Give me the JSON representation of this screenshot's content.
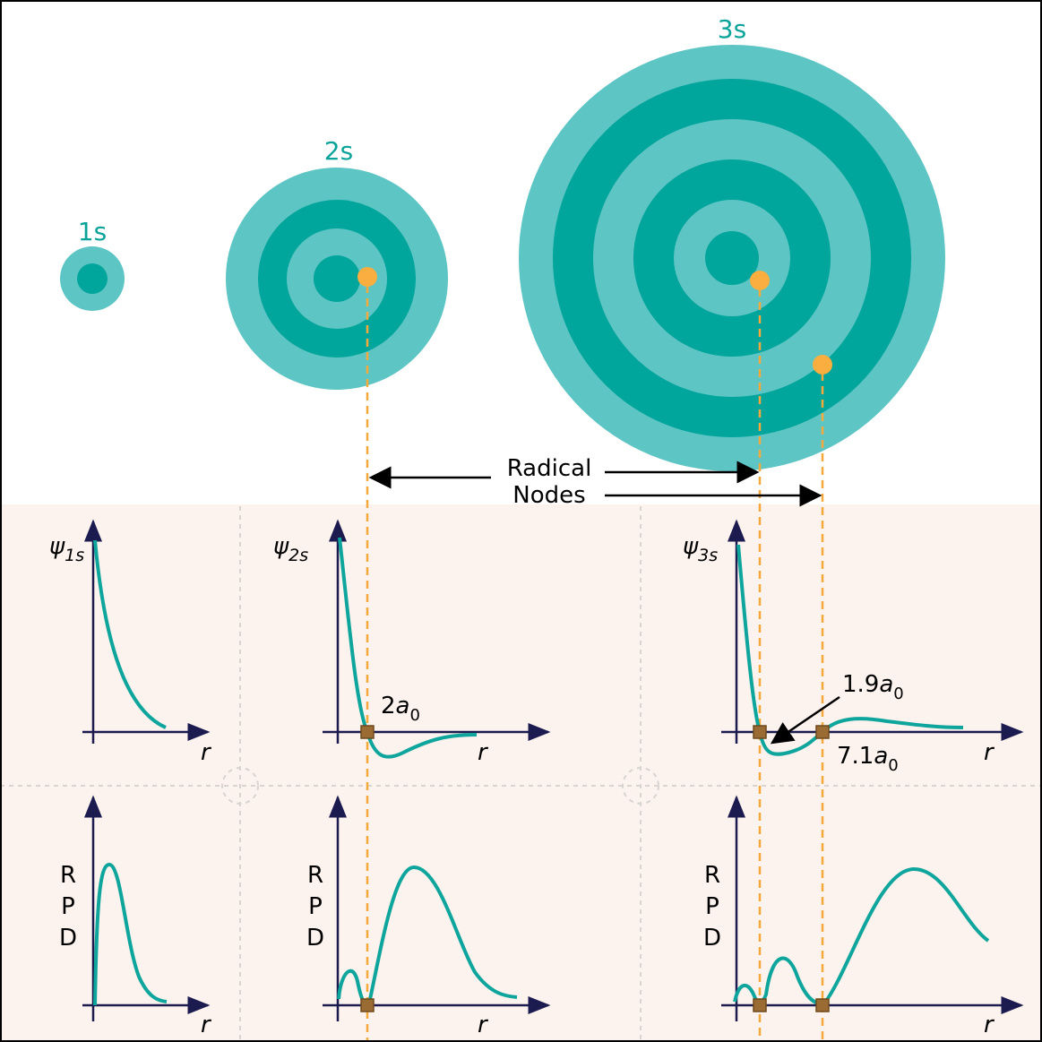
{
  "orbitals": [
    {
      "label": "1s"
    },
    {
      "label": "2s"
    },
    {
      "label": "3s"
    }
  ],
  "annotation": {
    "line1": "Radical",
    "line2": "Nodes"
  },
  "wave_plots": [
    {
      "symbol": "ψ",
      "subscript": "1s",
      "axis": "r"
    },
    {
      "symbol": "ψ",
      "subscript": "2s",
      "axis": "r"
    },
    {
      "symbol": "ψ",
      "subscript": "3s",
      "axis": "r"
    }
  ],
  "rpd_plots": [
    {
      "letters": [
        "R",
        "P",
        "D"
      ],
      "axis": "r"
    },
    {
      "letters": [
        "R",
        "P",
        "D"
      ],
      "axis": "r"
    },
    {
      "letters": [
        "R",
        "P",
        "D"
      ],
      "axis": "r"
    }
  ],
  "node_labels": [
    {
      "coefficient": "2",
      "symbol": "a",
      "subscript": "0"
    },
    {
      "coefficient": "1.9",
      "symbol": "a",
      "subscript": "0"
    },
    {
      "coefficient": "7.1",
      "symbol": "a",
      "subscript": "0"
    }
  ]
}
